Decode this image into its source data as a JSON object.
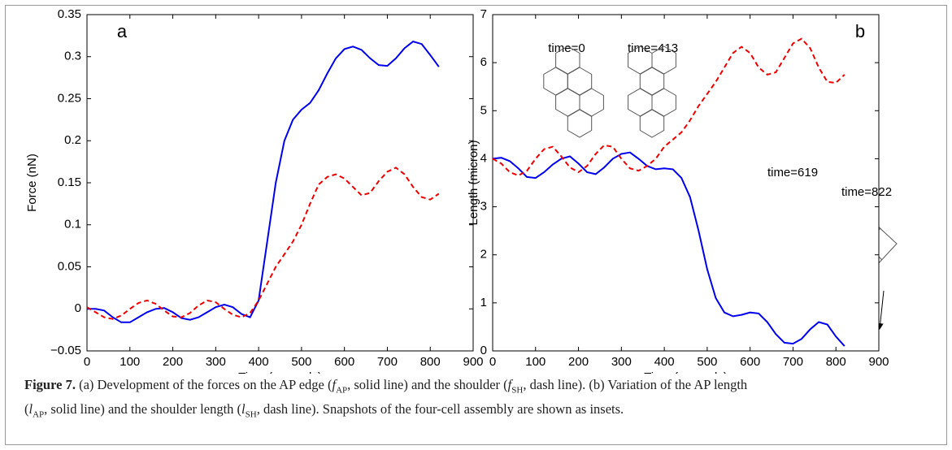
{
  "chart_data": [
    {
      "type": "line",
      "label": "a",
      "ylabel": "Force (nN)",
      "xlabel": "Time (seconds)",
      "xlim": [
        0,
        900
      ],
      "xticks": [
        0,
        100,
        200,
        300,
        400,
        500,
        600,
        700,
        800,
        900
      ],
      "ylim": [
        -0.05,
        0.35
      ],
      "yticks": [
        {
          "value": -0.05,
          "label": "−0.05"
        },
        0,
        0.05,
        0.1,
        0.15,
        0.2,
        0.25,
        0.3,
        0.35
      ],
      "x": [
        0,
        20,
        40,
        60,
        80,
        100,
        120,
        140,
        160,
        180,
        200,
        220,
        240,
        260,
        280,
        300,
        320,
        340,
        360,
        380,
        400,
        420,
        440,
        460,
        480,
        500,
        520,
        540,
        560,
        580,
        600,
        620,
        640,
        660,
        680,
        700,
        720,
        740,
        760,
        780,
        800,
        820
      ],
      "series": [
        {
          "color": "#0000ee",
          "linestyle": "solid",
          "values": [
            0,
            0,
            -0.002,
            -0.01,
            -0.016,
            -0.016,
            -0.01,
            -0.004,
            0,
            0.001,
            -0.004,
            -0.011,
            -0.013,
            -0.01,
            -0.004,
            0.002,
            0.005,
            0.002,
            -0.006,
            -0.01,
            0.01,
            0.08,
            0.15,
            0.2,
            0.225,
            0.237,
            0.245,
            0.26,
            0.28,
            0.298,
            0.309,
            0.312,
            0.308,
            0.298,
            0.29,
            0.289,
            0.298,
            0.31,
            0.318,
            0.315,
            0.302,
            0.288
          ]
        },
        {
          "color": "#ee0000",
          "linestyle": "dashed",
          "values": [
            0.002,
            -0.004,
            -0.01,
            -0.012,
            -0.008,
            0,
            0.007,
            0.01,
            0.006,
            -0.002,
            -0.009,
            -0.01,
            -0.005,
            0.004,
            0.01,
            0.008,
            0,
            -0.007,
            -0.01,
            -0.005,
            0.01,
            0.03,
            0.05,
            0.065,
            0.08,
            0.1,
            0.125,
            0.148,
            0.157,
            0.16,
            0.155,
            0.145,
            0.135,
            0.138,
            0.152,
            0.163,
            0.168,
            0.16,
            0.145,
            0.133,
            0.13,
            0.137
          ]
        }
      ]
    },
    {
      "type": "line",
      "label": "b",
      "ylabel": "Length (micron)",
      "xlabel": "Time (seconds)",
      "xlim": [
        0,
        900
      ],
      "xticks": [
        0,
        100,
        200,
        300,
        400,
        500,
        600,
        700,
        800,
        900
      ],
      "ylim": [
        0,
        7
      ],
      "yticks": [
        0,
        1,
        2,
        3,
        4,
        5,
        6,
        7
      ],
      "annotations": [
        "time=0",
        "time=413",
        "time=619",
        "time=822"
      ],
      "x": [
        0,
        20,
        40,
        60,
        80,
        100,
        120,
        140,
        160,
        180,
        200,
        220,
        240,
        260,
        280,
        300,
        320,
        340,
        360,
        380,
        400,
        420,
        440,
        460,
        480,
        500,
        520,
        540,
        560,
        580,
        600,
        620,
        640,
        660,
        680,
        700,
        720,
        740,
        760,
        780,
        800,
        820
      ],
      "series": [
        {
          "color": "#0000ee",
          "linestyle": "solid",
          "values": [
            4.0,
            4.02,
            3.95,
            3.8,
            3.62,
            3.6,
            3.72,
            3.88,
            4.0,
            4.05,
            3.9,
            3.72,
            3.68,
            3.82,
            4.0,
            4.1,
            4.13,
            4.0,
            3.85,
            3.78,
            3.8,
            3.78,
            3.6,
            3.2,
            2.5,
            1.7,
            1.1,
            0.8,
            0.72,
            0.75,
            0.8,
            0.78,
            0.6,
            0.35,
            0.17,
            0.15,
            0.25,
            0.45,
            0.6,
            0.55,
            0.3,
            0.1
          ]
        },
        {
          "color": "#ee0000",
          "linestyle": "dashed",
          "values": [
            4.0,
            3.9,
            3.72,
            3.65,
            3.75,
            4.0,
            4.2,
            4.25,
            4.05,
            3.82,
            3.72,
            3.85,
            4.1,
            4.28,
            4.25,
            4.0,
            3.8,
            3.75,
            3.85,
            4.0,
            4.25,
            4.4,
            4.55,
            4.8,
            5.1,
            5.35,
            5.6,
            5.9,
            6.2,
            6.33,
            6.2,
            5.9,
            5.75,
            5.8,
            6.1,
            6.4,
            6.5,
            6.3,
            5.9,
            5.6,
            5.58,
            5.75
          ]
        }
      ]
    }
  ],
  "caption": [
    "Figure 7.",
    " (a) Development of the forces on the AP edge (",
    "f",
    "AP",
    ", solid line) and the shoulder (",
    "f",
    "SH",
    ", dash line). (b) Variation of the AP length",
    "(",
    "l",
    "AP",
    ", solid line) and the shoulder length (",
    "l",
    "SH",
    ", dash line). Snapshots of the four-cell assembly are shown as insets."
  ]
}
